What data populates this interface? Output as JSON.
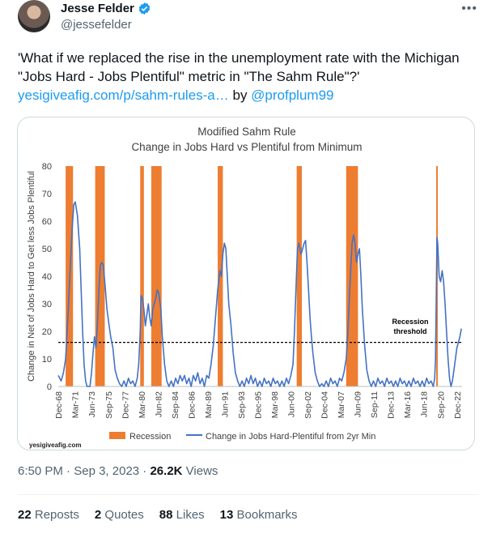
{
  "author": {
    "name": "Jesse Felder",
    "handle": "@jessefelder"
  },
  "icons": {
    "avatar": "avatar-photo",
    "verified": "verified-badge-icon",
    "more": "more-options-icon"
  },
  "colors": {
    "link": "#1d9bf0",
    "recession": "#ed7d31",
    "series": "#4472c4",
    "verified": "#1d9bf0"
  },
  "tweet": {
    "text": "'What if we replaced the rise in the unemployment rate with the Michigan \"Jobs Hard - Jobs Plentiful\" metric in \"The Sahm Rule\"?'",
    "link_text": "yesigiveafig.com/p/sahm-rules-a…",
    "by_text": " by ",
    "mention": "@profplum99"
  },
  "meta": {
    "time": "6:50 PM",
    "sep1": " · ",
    "date": "Sep 3, 2023",
    "sep2": " · ",
    "views_count": "26.2K",
    "views_label": " Views"
  },
  "stats": {
    "reposts_count": "22",
    "reposts_label": "Reposts",
    "quotes_count": "2",
    "quotes_label": "Quotes",
    "likes_count": "88",
    "likes_label": "Likes",
    "bookmarks_count": "13",
    "bookmarks_label": "Bookmarks"
  },
  "chart_data": {
    "type": "line",
    "title": "Modified Sahm Rule",
    "subtitle": "Change in Jobs Hard vs Plentiful from Minimum",
    "ylabel": "Change in Net of Jobs Hard to Get less Jobs Plentiful",
    "ylim": [
      0,
      80
    ],
    "yticks": [
      0,
      10,
      20,
      30,
      40,
      50,
      60,
      70,
      80
    ],
    "xlim": [
      1968.9,
      2023.6
    ],
    "xtick_labels": [
      "Dec-68",
      "Mar-71",
      "Jun-73",
      "Sep-75",
      "Dec-77",
      "Mar-80",
      "Jun-82",
      "Sep-84",
      "Dec-86",
      "Mar-89",
      "Jun-91",
      "Sep-93",
      "Dec-95",
      "Mar-98",
      "Jun-00",
      "Sep-02",
      "Dec-04",
      "Mar-07",
      "Jun-09",
      "Sep-11",
      "Dec-13",
      "Mar-16",
      "Jun-18",
      "Sep-20",
      "Dec-22"
    ],
    "xtick_values": [
      1968.92,
      1971.17,
      1973.42,
      1975.67,
      1977.92,
      1980.17,
      1982.42,
      1984.67,
      1986.92,
      1989.17,
      1991.42,
      1993.67,
      1995.92,
      1998.17,
      2000.42,
      2002.67,
      2004.92,
      2007.17,
      2009.42,
      2011.67,
      2013.92,
      2016.17,
      2018.42,
      2020.67,
      2022.92
    ],
    "grid": false,
    "legend_position": "bottom",
    "threshold": {
      "value": 16,
      "label_line1": "Recession",
      "label_line2": "threshold"
    },
    "source": "yesigiveafig.com",
    "recessions": [
      [
        1969.9,
        1970.9
      ],
      [
        1973.9,
        1975.2
      ],
      [
        1980.0,
        1980.5
      ],
      [
        1981.5,
        1982.9
      ],
      [
        1990.5,
        1991.2
      ],
      [
        2001.2,
        2001.9
      ],
      [
        2007.9,
        2009.5
      ],
      [
        2020.1,
        2020.3
      ]
    ],
    "series": [
      {
        "name": "Recession",
        "kind": "area",
        "color": "#ed7d31"
      },
      {
        "name": "Change in Jobs Hard-Plentiful from 2yr Min",
        "kind": "line",
        "color": "#4472c4",
        "points": [
          [
            1968.9,
            4
          ],
          [
            1969.3,
            2
          ],
          [
            1969.6,
            5
          ],
          [
            1969.9,
            10
          ],
          [
            1970.2,
            25
          ],
          [
            1970.5,
            42
          ],
          [
            1970.8,
            58
          ],
          [
            1971.0,
            66
          ],
          [
            1971.2,
            67
          ],
          [
            1971.5,
            62
          ],
          [
            1971.8,
            50
          ],
          [
            1972.0,
            35
          ],
          [
            1972.2,
            20
          ],
          [
            1972.4,
            8
          ],
          [
            1972.6,
            2
          ],
          [
            1972.8,
            0
          ],
          [
            1973.0,
            0
          ],
          [
            1973.2,
            0
          ],
          [
            1973.4,
            5
          ],
          [
            1973.6,
            12
          ],
          [
            1973.8,
            18
          ],
          [
            1974.0,
            14
          ],
          [
            1974.2,
            22
          ],
          [
            1974.4,
            35
          ],
          [
            1974.6,
            44
          ],
          [
            1974.8,
            45
          ],
          [
            1975.0,
            44
          ],
          [
            1975.2,
            38
          ],
          [
            1975.5,
            28
          ],
          [
            1975.8,
            22
          ],
          [
            1976.0,
            18
          ],
          [
            1976.3,
            14
          ],
          [
            1976.6,
            6
          ],
          [
            1976.9,
            3
          ],
          [
            1977.2,
            1
          ],
          [
            1977.5,
            0
          ],
          [
            1977.8,
            2
          ],
          [
            1978.1,
            0
          ],
          [
            1978.4,
            3
          ],
          [
            1978.7,
            1
          ],
          [
            1979.0,
            2
          ],
          [
            1979.3,
            0
          ],
          [
            1979.6,
            3
          ],
          [
            1979.8,
            8
          ],
          [
            1980.0,
            20
          ],
          [
            1980.1,
            33
          ],
          [
            1980.3,
            32
          ],
          [
            1980.5,
            28
          ],
          [
            1980.7,
            22
          ],
          [
            1980.9,
            26
          ],
          [
            1981.1,
            30
          ],
          [
            1981.3,
            25
          ],
          [
            1981.5,
            22
          ],
          [
            1981.7,
            28
          ],
          [
            1981.9,
            30
          ],
          [
            1982.1,
            32
          ],
          [
            1982.3,
            35
          ],
          [
            1982.5,
            34
          ],
          [
            1982.8,
            28
          ],
          [
            1983.0,
            18
          ],
          [
            1983.3,
            8
          ],
          [
            1983.6,
            2
          ],
          [
            1983.9,
            0
          ],
          [
            1984.2,
            2
          ],
          [
            1984.5,
            0
          ],
          [
            1984.8,
            3
          ],
          [
            1985.1,
            1
          ],
          [
            1985.4,
            4
          ],
          [
            1985.7,
            2
          ],
          [
            1986.0,
            4
          ],
          [
            1986.3,
            1
          ],
          [
            1986.6,
            3
          ],
          [
            1986.9,
            0
          ],
          [
            1987.2,
            4
          ],
          [
            1987.5,
            2
          ],
          [
            1987.8,
            5
          ],
          [
            1988.1,
            1
          ],
          [
            1988.4,
            3
          ],
          [
            1988.7,
            0
          ],
          [
            1989.0,
            4
          ],
          [
            1989.3,
            3
          ],
          [
            1989.6,
            8
          ],
          [
            1989.9,
            15
          ],
          [
            1990.2,
            25
          ],
          [
            1990.5,
            35
          ],
          [
            1990.8,
            42
          ],
          [
            1991.0,
            40
          ],
          [
            1991.2,
            48
          ],
          [
            1991.4,
            52
          ],
          [
            1991.6,
            50
          ],
          [
            1991.8,
            40
          ],
          [
            1992.0,
            30
          ],
          [
            1992.3,
            22
          ],
          [
            1992.6,
            12
          ],
          [
            1992.9,
            5
          ],
          [
            1993.2,
            2
          ],
          [
            1993.5,
            0
          ],
          [
            1993.8,
            2
          ],
          [
            1994.1,
            0
          ],
          [
            1994.4,
            3
          ],
          [
            1994.7,
            1
          ],
          [
            1995.0,
            4
          ],
          [
            1995.3,
            1
          ],
          [
            1995.6,
            3
          ],
          [
            1995.9,
            0
          ],
          [
            1996.2,
            2
          ],
          [
            1996.5,
            0
          ],
          [
            1996.8,
            3
          ],
          [
            1997.1,
            1
          ],
          [
            1997.4,
            2
          ],
          [
            1997.7,
            0
          ],
          [
            1998.0,
            3
          ],
          [
            1998.3,
            1
          ],
          [
            1998.6,
            2
          ],
          [
            1998.9,
            0
          ],
          [
            1999.2,
            2
          ],
          [
            1999.5,
            0
          ],
          [
            1999.8,
            3
          ],
          [
            2000.1,
            1
          ],
          [
            2000.4,
            4
          ],
          [
            2000.7,
            8
          ],
          [
            2000.9,
            20
          ],
          [
            2001.1,
            35
          ],
          [
            2001.3,
            50
          ],
          [
            2001.5,
            52
          ],
          [
            2001.8,
            48
          ],
          [
            2002.0,
            50
          ],
          [
            2002.2,
            52
          ],
          [
            2002.4,
            53
          ],
          [
            2002.6,
            45
          ],
          [
            2002.8,
            35
          ],
          [
            2003.0,
            25
          ],
          [
            2003.2,
            18
          ],
          [
            2003.4,
            12
          ],
          [
            2003.7,
            5
          ],
          [
            2004.0,
            2
          ],
          [
            2004.3,
            0
          ],
          [
            2004.6,
            1
          ],
          [
            2004.9,
            0
          ],
          [
            2005.2,
            2
          ],
          [
            2005.5,
            0
          ],
          [
            2005.8,
            3
          ],
          [
            2006.1,
            1
          ],
          [
            2006.4,
            2
          ],
          [
            2006.7,
            0
          ],
          [
            2007.0,
            3
          ],
          [
            2007.3,
            2
          ],
          [
            2007.6,
            5
          ],
          [
            2007.9,
            10
          ],
          [
            2008.1,
            18
          ],
          [
            2008.3,
            30
          ],
          [
            2008.5,
            42
          ],
          [
            2008.7,
            52
          ],
          [
            2008.9,
            55
          ],
          [
            2009.1,
            52
          ],
          [
            2009.3,
            45
          ],
          [
            2009.5,
            48
          ],
          [
            2009.7,
            50
          ],
          [
            2009.9,
            40
          ],
          [
            2010.1,
            28
          ],
          [
            2010.4,
            15
          ],
          [
            2010.7,
            6
          ],
          [
            2011.0,
            2
          ],
          [
            2011.3,
            0
          ],
          [
            2011.6,
            2
          ],
          [
            2011.9,
            0
          ],
          [
            2012.2,
            3
          ],
          [
            2012.5,
            1
          ],
          [
            2012.8,
            2
          ],
          [
            2013.1,
            0
          ],
          [
            2013.4,
            3
          ],
          [
            2013.7,
            1
          ],
          [
            2014.0,
            2
          ],
          [
            2014.3,
            0
          ],
          [
            2014.6,
            2
          ],
          [
            2014.9,
            0
          ],
          [
            2015.2,
            3
          ],
          [
            2015.5,
            1
          ],
          [
            2015.8,
            2
          ],
          [
            2016.1,
            0
          ],
          [
            2016.4,
            2
          ],
          [
            2016.7,
            0
          ],
          [
            2017.0,
            3
          ],
          [
            2017.3,
            1
          ],
          [
            2017.6,
            2
          ],
          [
            2017.9,
            0
          ],
          [
            2018.2,
            2
          ],
          [
            2018.5,
            0
          ],
          [
            2018.8,
            3
          ],
          [
            2019.1,
            1
          ],
          [
            2019.4,
            2
          ],
          [
            2019.7,
            0
          ],
          [
            2019.9,
            3
          ],
          [
            2020.0,
            10
          ],
          [
            2020.2,
            54
          ],
          [
            2020.3,
            52
          ],
          [
            2020.5,
            40
          ],
          [
            2020.7,
            38
          ],
          [
            2020.9,
            42
          ],
          [
            2021.1,
            38
          ],
          [
            2021.3,
            30
          ],
          [
            2021.5,
            20
          ],
          [
            2021.7,
            10
          ],
          [
            2021.9,
            3
          ],
          [
            2022.1,
            0
          ],
          [
            2022.3,
            2
          ],
          [
            2022.5,
            6
          ],
          [
            2022.7,
            10
          ],
          [
            2022.9,
            14
          ],
          [
            2023.1,
            16
          ],
          [
            2023.3,
            18
          ],
          [
            2023.5,
            21
          ]
        ]
      }
    ]
  }
}
